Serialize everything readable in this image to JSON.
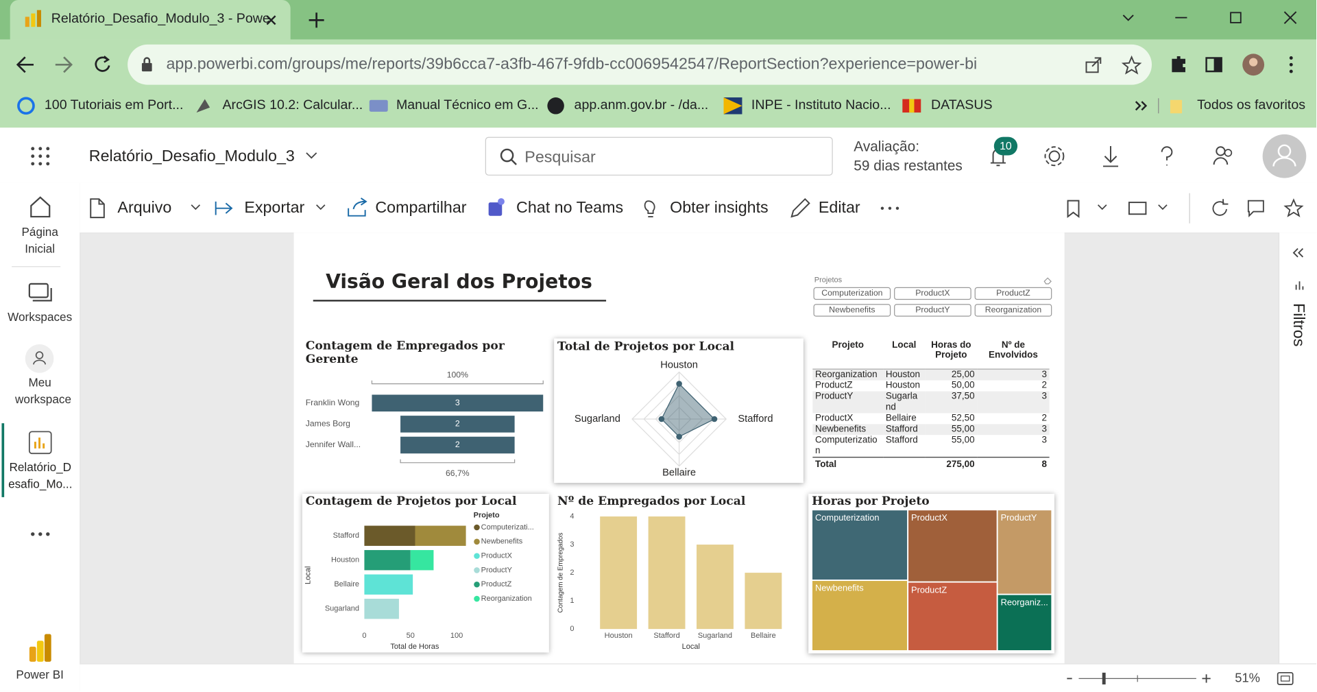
{
  "browser": {
    "tab_title": "Relatório_Desafio_Modulo_3 - Powe",
    "url": "app.powerbi.com/groups/me/reports/39b6cca7-a3fb-467f-9fdb-cc0069542547/ReportSection?experience=power-bi",
    "bookmarks": [
      "100 Tutoriais em Port...",
      "ArcGIS 10.2: Calcular...",
      "Manual Técnico em G...",
      "app.anm.gov.br - /da...",
      "INPE - Instituto Nacio...",
      "DATASUS"
    ],
    "all_bookmarks": "Todos os favoritos"
  },
  "app": {
    "report_name": "Relatório_Desafio_Modulo_3",
    "search_placeholder": "Pesquisar",
    "trial_label": "Avaliação:",
    "trial_days": "59 dias restantes",
    "notifications": "10",
    "nav": [
      "Página Inicial",
      "Workspaces",
      "Meu workspace",
      "Relatório_Desafio_Mo...",
      "Power BI"
    ],
    "toolbar": [
      "Arquivo",
      "Exportar",
      "Compartilhar",
      "Chat no Teams",
      "Obter insights",
      "Editar"
    ],
    "filters": "Filtros",
    "zoom": "51%"
  },
  "report": {
    "title": "Visão Geral dos Projetos",
    "slicer": {
      "title": "Projetos",
      "items": [
        "Computerization",
        "ProductX",
        "ProductZ",
        "Newbenefits",
        "ProductY",
        "Reorganization"
      ]
    },
    "table": {
      "columns": [
        "Projeto",
        "Local",
        "Horas do Projeto",
        "Nº de Envolvidos"
      ],
      "rows": [
        [
          "Reorganization",
          "Houston",
          "25,00",
          "3"
        ],
        [
          "ProductZ",
          "Houston",
          "50,00",
          "2"
        ],
        [
          "ProductY",
          "Sugarland",
          "37,50",
          "3"
        ],
        [
          "ProductX",
          "Bellaire",
          "52,50",
          "2"
        ],
        [
          "Newbenefits",
          "Stafford",
          "55,00",
          "3"
        ],
        [
          "Computerization",
          "Stafford",
          "55,00",
          "3"
        ]
      ],
      "total": {
        "label": "Total",
        "hours": "275,00",
        "count": "8"
      }
    }
  },
  "chart_data": [
    {
      "type": "funnel",
      "title": "Contagem de Empregados por Gerente",
      "categories": [
        "Franklin Wong",
        "James Borg",
        "Jennifer Wall..."
      ],
      "values": [
        3,
        2,
        2
      ],
      "top_label": "100%",
      "bottom_label": "66,7%",
      "color": "#3f6272"
    },
    {
      "type": "radar",
      "title": "Total de Projetos por Local",
      "categories": [
        "Houston",
        "Stafford",
        "Bellaire",
        "Sugarland"
      ],
      "values": [
        2,
        2,
        1,
        1
      ],
      "color": "#3f6272"
    },
    {
      "type": "hbar",
      "title": "Contagem de Projetos por Local",
      "xlabel": "Total de Horas",
      "ylabel": "Local",
      "legend_title": "Projeto",
      "stacked": true,
      "categories": [
        "Stafford",
        "Houston",
        "Bellaire",
        "Sugarland"
      ],
      "series": [
        {
          "name": "Computerizati...",
          "color": "#6b5a2a",
          "values": [
            55,
            null,
            null,
            null
          ]
        },
        {
          "name": "Newbenefits",
          "color": "#a08a3c",
          "values": [
            55,
            null,
            null,
            null
          ]
        },
        {
          "name": "ProductX",
          "color": "#5ee3d6",
          "values": [
            null,
            null,
            52.5,
            null
          ]
        },
        {
          "name": "ProductY",
          "color": "#a8dcd8",
          "values": [
            null,
            null,
            null,
            37.5
          ]
        },
        {
          "name": "ProductZ",
          "color": "#259e77",
          "values": [
            null,
            50,
            null,
            null
          ]
        },
        {
          "name": "Reorganization",
          "color": "#36e6a0",
          "values": [
            null,
            25,
            null,
            null
          ]
        }
      ],
      "xlim": [
        0,
        110
      ],
      "xticks": [
        0,
        50,
        100
      ]
    },
    {
      "type": "column",
      "title": "Nº de Empregados por Local",
      "xlabel": "Local",
      "ylabel": "Contagem de Empregados",
      "categories": [
        "Houston",
        "Stafford",
        "Sugarland",
        "Bellaire"
      ],
      "values": [
        4,
        4,
        3,
        2
      ],
      "color": "#e5cf8f",
      "ylim": [
        0,
        4
      ],
      "yticks": [
        0,
        1,
        2,
        3,
        4
      ]
    },
    {
      "type": "treemap",
      "title": "Horas por Projeto",
      "categories": [
        "Computerization",
        "Newbenefits",
        "ProductX",
        "ProductZ",
        "ProductY",
        "Reorganiz..."
      ],
      "values": [
        55,
        55,
        52.5,
        50,
        37.5,
        25
      ],
      "colors": [
        "#3f6874",
        "#d4b04a",
        "#a0603a",
        "#c65c40",
        "#c49a66",
        "#0b7055"
      ]
    }
  ]
}
